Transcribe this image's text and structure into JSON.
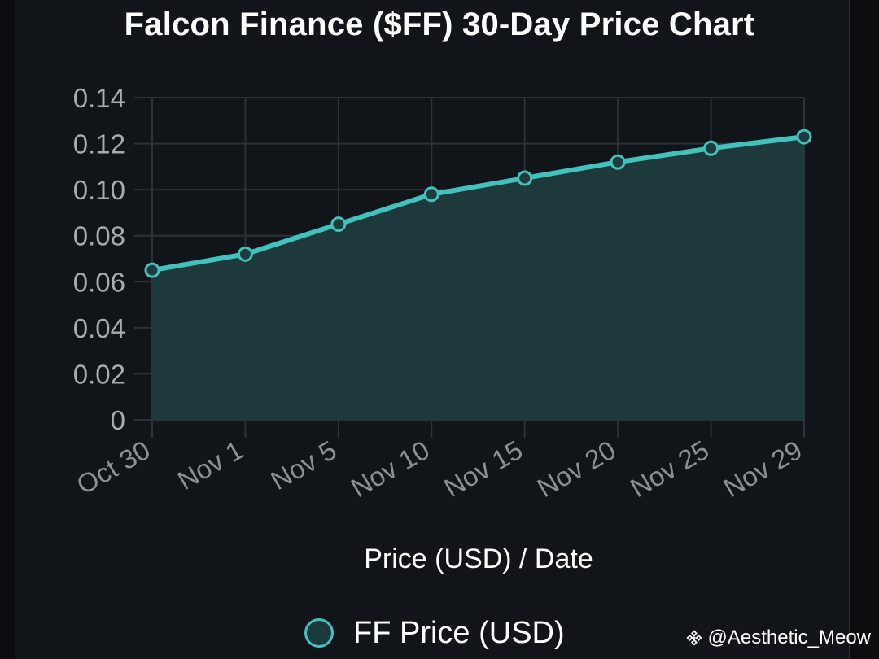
{
  "title": "Falcon Finance ($FF) 30-Day Price Chart",
  "watermark": {
    "logo_icon": "binance-logo-icon",
    "handle": "@Aesthetic_Meow"
  },
  "colors": {
    "line": "#43c1bd",
    "area_fill": "#1f3b3d",
    "background": "#111418",
    "grid": "#2b3238"
  },
  "chart_data": {
    "type": "area",
    "title": "Falcon Finance ($FF) 30-Day Price Chart",
    "xlabel": "Price (USD) / Date",
    "ylabel": "",
    "categories": [
      "Oct 30",
      "Nov 1",
      "Nov 5",
      "Nov 10",
      "Nov 15",
      "Nov 20",
      "Nov 25",
      "Nov 29"
    ],
    "series": [
      {
        "name": "FF Price (USD)",
        "values": [
          0.065,
          0.072,
          0.085,
          0.098,
          0.105,
          0.112,
          0.118,
          0.123
        ]
      }
    ],
    "yticks": [
      "0",
      "0.02",
      "0.04",
      "0.06",
      "0.08",
      "0.10",
      "0.12",
      "0.14"
    ],
    "ylim": [
      0,
      0.14
    ],
    "grid": true,
    "legend_position": "bottom-center"
  }
}
